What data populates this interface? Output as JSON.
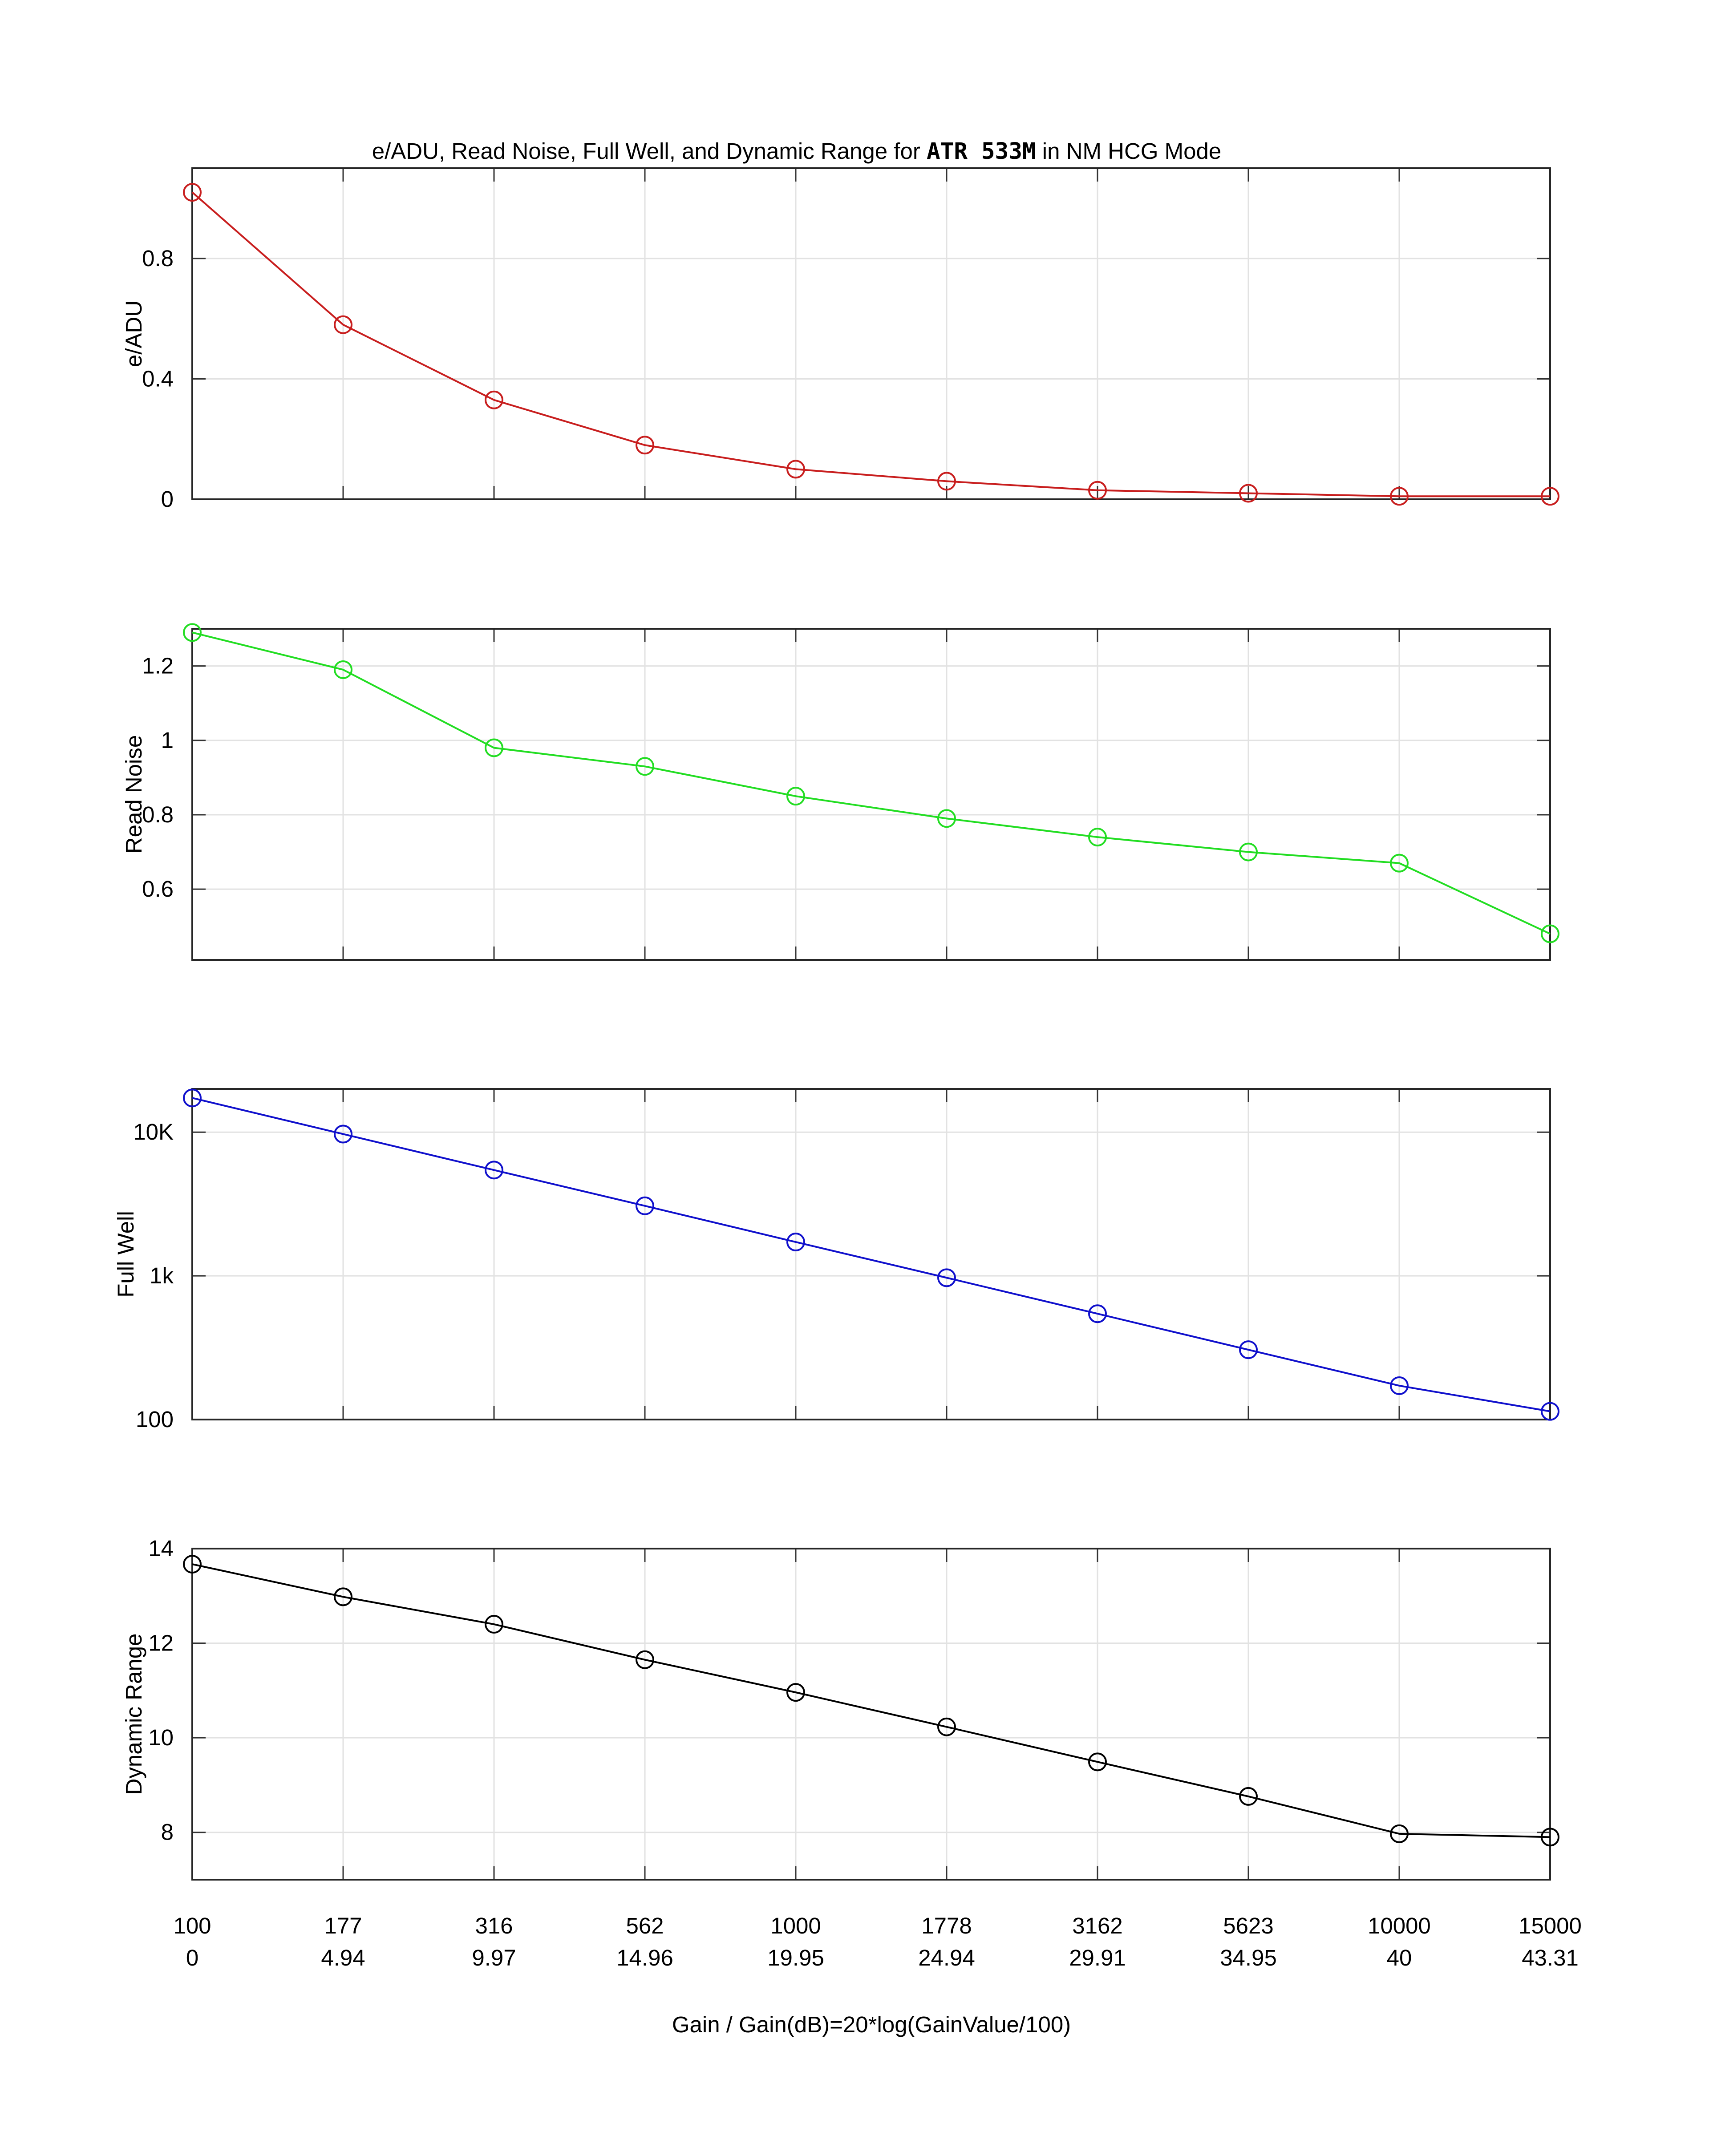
{
  "title": {
    "prefix": "e/ADU, Read Noise, Full Well, and Dynamic Range for ",
    "bold": "ATR 533M",
    "suffix": " in NM HCG Mode"
  },
  "chart_data": [
    {
      "type": "line",
      "ylabel": "e/ADU",
      "color": "#c81e1e",
      "marker": "circle",
      "grid": true,
      "yscale": "linear",
      "ylim": [
        0,
        1.1
      ],
      "yticks": [
        {
          "v": 0,
          "label": "0"
        },
        {
          "v": 0.4,
          "label": "0.4"
        },
        {
          "v": 0.8,
          "label": "0.8"
        }
      ],
      "x": [
        100,
        177,
        316,
        562,
        1000,
        1778,
        3162,
        5623,
        10000,
        15000
      ],
      "values": [
        1.02,
        0.58,
        0.33,
        0.18,
        0.1,
        0.06,
        0.03,
        0.02,
        0.01,
        0.01
      ]
    },
    {
      "type": "line",
      "ylabel": "Read Noise",
      "color": "#22dd22",
      "marker": "circle",
      "grid": true,
      "yscale": "linear",
      "ylim": [
        0.41,
        1.3
      ],
      "yticks": [
        {
          "v": 0.6,
          "label": "0.6"
        },
        {
          "v": 0.8,
          "label": "0.8"
        },
        {
          "v": 1.0,
          "label": "1"
        },
        {
          "v": 1.2,
          "label": "1.2"
        }
      ],
      "x": [
        100,
        177,
        316,
        562,
        1000,
        1778,
        3162,
        5623,
        10000,
        15000
      ],
      "values": [
        1.29,
        1.19,
        0.98,
        0.93,
        0.85,
        0.79,
        0.74,
        0.7,
        0.67,
        0.48
      ]
    },
    {
      "type": "line",
      "ylabel": "Full Well",
      "color": "#1010cc",
      "marker": "circle",
      "grid": true,
      "yscale": "log",
      "ylim": [
        100,
        20000
      ],
      "yticks": [
        {
          "v": 100,
          "label": "100"
        },
        {
          "v": 1000,
          "label": "1k"
        },
        {
          "v": 10000,
          "label": "10K"
        }
      ],
      "x": [
        100,
        177,
        316,
        562,
        1000,
        1778,
        3162,
        5623,
        10000,
        15000
      ],
      "values": [
        17300,
        9700,
        5450,
        3070,
        1720,
        970,
        545,
        306,
        172,
        114
      ]
    },
    {
      "type": "line",
      "ylabel": "Dynamic Range",
      "color": "#000000",
      "marker": "circle",
      "grid": true,
      "yscale": "linear",
      "ylim": [
        7,
        14
      ],
      "yticks": [
        {
          "v": 8,
          "label": "8"
        },
        {
          "v": 10,
          "label": "10"
        },
        {
          "v": 12,
          "label": "12"
        },
        {
          "v": 14,
          "label": "14"
        }
      ],
      "x": [
        100,
        177,
        316,
        562,
        1000,
        1778,
        3162,
        5623,
        10000,
        15000
      ],
      "values": [
        13.67,
        12.98,
        12.4,
        11.65,
        10.96,
        10.23,
        9.49,
        8.76,
        7.97,
        7.9
      ]
    }
  ],
  "x_axis": {
    "gain_labels": [
      "100",
      "177",
      "316",
      "562",
      "1000",
      "1778",
      "3162",
      "5623",
      "10000",
      "15000"
    ],
    "db_labels": [
      "0",
      "4.94",
      "9.97",
      "14.96",
      "19.95",
      "24.94",
      "29.91",
      "34.95",
      "40",
      "43.31"
    ],
    "xlabel": "Gain / Gain(dB)=20*log(GainValue/100)"
  }
}
